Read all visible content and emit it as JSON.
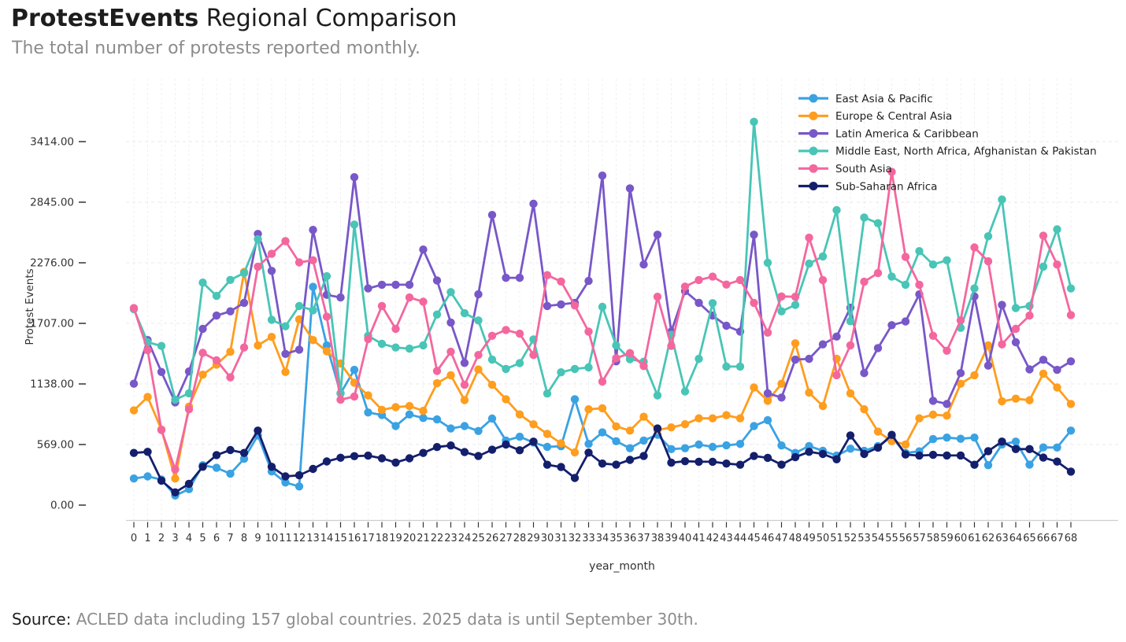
{
  "header": {
    "title_bold": "ProtestEvents",
    "title_rest": " Regional Comparison",
    "subtitle": "The total number of protests reported monthly."
  },
  "footer": {
    "label": "Source:",
    "text": " ACLED data including 157 global countries. 2025 data is until September 30th."
  },
  "chart_data": {
    "type": "line",
    "title": "ProtestEvents Regional Comparison",
    "xlabel": "year_month",
    "ylabel": "Protest Events",
    "grid": true,
    "legend_position": "top-right",
    "ylim": [
      0,
      3700
    ],
    "ytick_values": [
      0,
      569,
      1138,
      1707,
      2276,
      2845,
      3414
    ],
    "ytick_labels": [
      "0.00",
      "569.00",
      "1138.00",
      "1707.00",
      "2276.00",
      "2845.00",
      "3414.00"
    ],
    "x": [
      0,
      1,
      2,
      3,
      4,
      5,
      6,
      7,
      8,
      9,
      10,
      11,
      12,
      13,
      14,
      15,
      16,
      17,
      18,
      19,
      20,
      21,
      22,
      23,
      24,
      25,
      26,
      27,
      28,
      29,
      30,
      31,
      32,
      33,
      34,
      35,
      36,
      37,
      38,
      39,
      40,
      41,
      42,
      43,
      44,
      45,
      46,
      47,
      48,
      49,
      50,
      51,
      52,
      53,
      54,
      55,
      56,
      57,
      58,
      59,
      60,
      61,
      62,
      63,
      64,
      65,
      66,
      67,
      68
    ],
    "series": [
      {
        "name": "East Asia & Pacific",
        "color": "#3aa2e3",
        "values": [
          250,
          270,
          240,
          90,
          150,
          375,
          350,
          295,
          435,
          655,
          316,
          212,
          175,
          2050,
          1500,
          1050,
          1270,
          870,
          846,
          743,
          851,
          818,
          805,
          720,
          743,
          696,
          813,
          607,
          642,
          588,
          547,
          553,
          995,
          575,
          683,
          600,
          534,
          607,
          661,
          526,
          534,
          569,
          547,
          561,
          575,
          743,
          797,
          560,
          490,
          555,
          510,
          465,
          530,
          510,
          555,
          640,
          490,
          505,
          620,
          634,
          623,
          634,
          375,
          570,
          596,
          380,
          542,
          541,
          700
        ]
      },
      {
        "name": "Europe & Central Asia",
        "color": "#ff9d1e",
        "values": [
          890,
          1015,
          710,
          250,
          925,
          1225,
          1320,
          1440,
          2190,
          1500,
          1580,
          1250,
          1745,
          1550,
          1445,
          1330,
          1150,
          1030,
          895,
          920,
          930,
          885,
          1145,
          1220,
          986,
          1274,
          1130,
          995,
          851,
          759,
          669,
          580,
          495,
          900,
          910,
          740,
          700,
          830,
          705,
          730,
          760,
          815,
          815,
          845,
          815,
          1105,
          980,
          1140,
          1520,
          1057,
          930,
          1375,
          1050,
          900,
          690,
          600,
          570,
          815,
          850,
          840,
          1140,
          1220,
          1500,
          975,
          1000,
          985,
          1235,
          1105,
          950
        ]
      },
      {
        "name": "Latin America & Caribbean",
        "color": "#7857c8",
        "values": [
          1140,
          1550,
          1250,
          965,
          1255,
          1655,
          1780,
          1820,
          1900,
          2547,
          2200,
          1420,
          1460,
          2585,
          1975,
          1950,
          3080,
          2035,
          2070,
          2070,
          2070,
          2400,
          2110,
          1715,
          1335,
          1980,
          2725,
          2135,
          2135,
          2830,
          1870,
          1885,
          1900,
          2105,
          3095,
          1350,
          2975,
          2260,
          2540,
          1630,
          2010,
          1900,
          1780,
          1685,
          1630,
          2540,
          1050,
          1010,
          1366,
          1374,
          1510,
          1583,
          1854,
          1240,
          1475,
          1690,
          1725,
          1980,
          980,
          950,
          1240,
          1960,
          1310,
          1880,
          1530,
          1275,
          1365,
          1270,
          1350
        ]
      },
      {
        "name": "Middle East, North Africa, Afghanistan & Pakistan",
        "color": "#48c5b6",
        "values": [
          1840,
          1530,
          1495,
          990,
          1050,
          2090,
          1965,
          2115,
          2180,
          2498,
          1740,
          1680,
          1870,
          1830,
          2150,
          1050,
          2635,
          1590,
          1515,
          1480,
          1470,
          1500,
          1790,
          2000,
          1802,
          1734,
          1366,
          1279,
          1333,
          1556,
          1048,
          1247,
          1279,
          1293,
          1862,
          1500,
          1370,
          1347,
          1030,
          1599,
          1068,
          1374,
          1897,
          1301,
          1301,
          3600,
          2276,
          1820,
          1880,
          2268,
          2336,
          2770,
          1727,
          2702,
          2648,
          2146,
          2070,
          2385,
          2260,
          2300,
          1665,
          2035,
          2525,
          2870,
          1850,
          1870,
          2240,
          2590,
          2035
        ]
      },
      {
        "name": "South Asia",
        "color": "#f4679e",
        "values": [
          1850,
          1455,
          705,
          335,
          900,
          1430,
          1360,
          1200,
          1480,
          2240,
          2360,
          2480,
          2280,
          2300,
          1770,
          990,
          1020,
          1560,
          1870,
          1655,
          1950,
          1910,
          1260,
          1440,
          1130,
          1410,
          1590,
          1645,
          1610,
          1410,
          2160,
          2100,
          1875,
          1630,
          1160,
          1380,
          1428,
          1306,
          1957,
          1496,
          2052,
          2114,
          2146,
          2071,
          2114,
          1900,
          1620,
          1960,
          1957,
          2512,
          2114,
          1220,
          1501,
          2098,
          2179,
          3130,
          2331,
          2070,
          1590,
          1450,
          1735,
          2420,
          2290,
          1510,
          1655,
          1780,
          2530,
          2260,
          1785
        ]
      },
      {
        "name": "Sub-Saharan Africa",
        "color": "#141f6c",
        "values": [
          490,
          500,
          230,
          120,
          200,
          360,
          470,
          517,
          490,
          700,
          360,
          270,
          280,
          340,
          410,
          445,
          460,
          465,
          440,
          400,
          440,
          490,
          545,
          560,
          498,
          461,
          520,
          569,
          515,
          596,
          379,
          358,
          255,
          493,
          390,
          380,
          425,
          461,
          720,
          398,
          412,
          407,
          407,
          390,
          379,
          461,
          444,
          380,
          450,
          500,
          480,
          430,
          655,
          480,
          540,
          660,
          475,
          465,
          472,
          466,
          466,
          379,
          507,
          596,
          526,
          526,
          446,
          409,
          315
        ]
      }
    ]
  }
}
